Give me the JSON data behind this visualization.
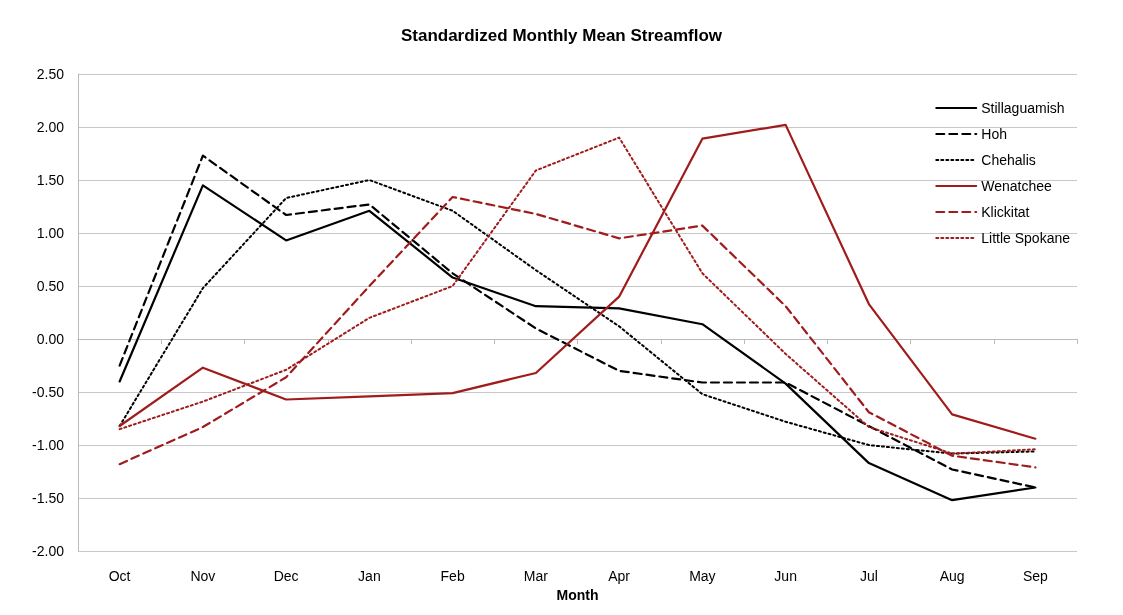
{
  "chart_data": {
    "type": "line",
    "title": "Standardized Monthly Mean Streamflow",
    "xlabel": "Month",
    "categories": [
      "Oct",
      "Nov",
      "Dec",
      "Jan",
      "Feb",
      "Mar",
      "Apr",
      "May",
      "Jun",
      "Jul",
      "Aug",
      "Sep"
    ],
    "series": [
      {
        "name": "Stillaguamish",
        "color": "#000000",
        "line_style": "solid",
        "values": [
          -0.4,
          1.45,
          0.93,
          1.21,
          0.58,
          0.31,
          0.29,
          0.14,
          -0.42,
          -1.17,
          -1.52,
          -1.4
        ]
      },
      {
        "name": "Hoh",
        "color": "#000000",
        "line_style": "dashed",
        "values": [
          -0.25,
          1.73,
          1.17,
          1.27,
          0.62,
          0.1,
          -0.3,
          -0.41,
          -0.41,
          -0.82,
          -1.23,
          -1.4
        ]
      },
      {
        "name": "Chehalis",
        "color": "#000000",
        "line_style": "dotted",
        "values": [
          -0.82,
          0.48,
          1.33,
          1.5,
          1.21,
          0.65,
          0.12,
          -0.52,
          -0.78,
          -1.0,
          -1.08,
          -1.06
        ]
      },
      {
        "name": "Wenatchee",
        "color": "#a01c1c",
        "line_style": "solid",
        "values": [
          -0.82,
          -0.27,
          -0.57,
          -0.54,
          -0.51,
          -0.32,
          0.4,
          1.89,
          2.02,
          0.33,
          -0.71,
          -0.94
        ]
      },
      {
        "name": "Klickitat",
        "color": "#a01c1c",
        "line_style": "dashed",
        "values": [
          -1.18,
          -0.83,
          -0.36,
          0.5,
          1.34,
          1.18,
          0.95,
          1.07,
          0.31,
          -0.69,
          -1.1,
          -1.21
        ]
      },
      {
        "name": "Little Spokane",
        "color": "#a01c1c",
        "line_style": "dotted",
        "values": [
          -0.85,
          -0.59,
          -0.29,
          0.2,
          0.5,
          1.59,
          1.9,
          0.62,
          -0.14,
          -0.83,
          -1.08,
          -1.04
        ]
      }
    ],
    "ylim": [
      -2,
      2.5
    ],
    "yticks": [
      {
        "value": -2,
        "label": "-2.00"
      },
      {
        "value": -1.5,
        "label": "-1.50"
      },
      {
        "value": -1,
        "label": "-1.00"
      },
      {
        "value": -0.5,
        "label": "-0.50"
      },
      {
        "value": 0,
        "label": "0.00"
      },
      {
        "value": 0.5,
        "label": "0.50"
      },
      {
        "value": 1,
        "label": "1.00"
      },
      {
        "value": 1.5,
        "label": "1.50"
      },
      {
        "value": 2,
        "label": "2.00"
      },
      {
        "value": 2.5,
        "label": "2.50"
      }
    ],
    "grid": "y",
    "legend": "top right",
    "marker": "none"
  }
}
